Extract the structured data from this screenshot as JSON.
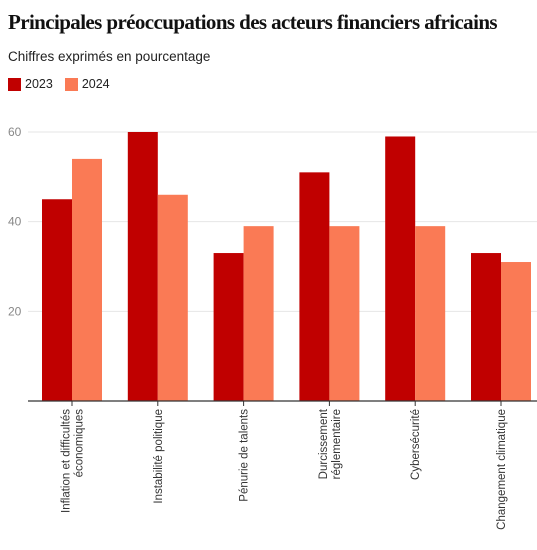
{
  "chart_data": {
    "type": "bar",
    "title": "Principales préoccupations des acteurs financiers africains",
    "subtitle": "Chiffres exprimés en pourcentage",
    "categories": [
      [
        "Inflation et difficultés",
        "économiques"
      ],
      [
        "Instabilité politique"
      ],
      [
        "Pénurie de talents"
      ],
      [
        "Durcissement",
        "réglementaire"
      ],
      [
        "Cybersécurité"
      ],
      [
        "Changement climatique"
      ]
    ],
    "series": [
      {
        "name": "2023",
        "color": "#c00000",
        "values": [
          45,
          60,
          33,
          51,
          59,
          33
        ]
      },
      {
        "name": "2024",
        "color": "#fa7a55",
        "values": [
          54,
          46,
          39,
          39,
          39,
          31
        ]
      }
    ],
    "yticks": [
      "20",
      "40",
      "60"
    ],
    "ylim": [
      0,
      60
    ],
    "grid": true,
    "legend": "top-left"
  }
}
